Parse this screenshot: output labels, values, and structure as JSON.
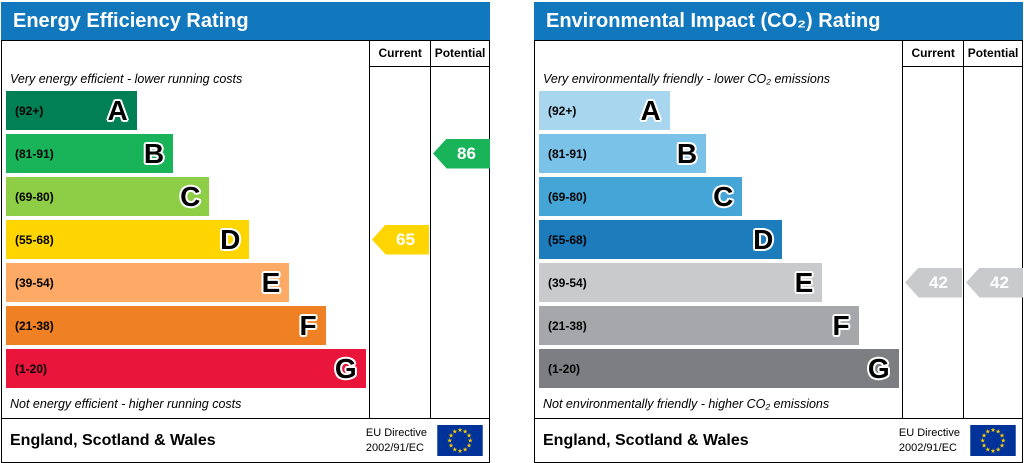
{
  "chart_data": [
    {
      "type": "bar",
      "title": "Energy Efficiency Rating",
      "bands": [
        {
          "grade": "A",
          "range": "92+"
        },
        {
          "grade": "B",
          "range": "81-91"
        },
        {
          "grade": "C",
          "range": "69-80"
        },
        {
          "grade": "D",
          "range": "55-68"
        },
        {
          "grade": "E",
          "range": "39-54"
        },
        {
          "grade": "F",
          "range": "21-38"
        },
        {
          "grade": "G",
          "range": "1-20"
        }
      ],
      "current": 65,
      "current_band": "D",
      "potential": 86,
      "potential_band": "B",
      "top_annotation": "Very energy efficient - lower running costs",
      "bottom_annotation": "Not energy efficient - higher running costs",
      "region": "England, Scotland & Wales",
      "directive": "EU Directive 2002/91/EC"
    },
    {
      "type": "bar",
      "title": "Environmental Impact (CO₂) Rating",
      "bands": [
        {
          "grade": "A",
          "range": "92+"
        },
        {
          "grade": "B",
          "range": "81-91"
        },
        {
          "grade": "C",
          "range": "69-80"
        },
        {
          "grade": "D",
          "range": "55-68"
        },
        {
          "grade": "E",
          "range": "39-54"
        },
        {
          "grade": "F",
          "range": "21-38"
        },
        {
          "grade": "G",
          "range": "1-20"
        }
      ],
      "current": 42,
      "current_band": "E",
      "potential": 42,
      "potential_band": "E",
      "top_annotation": "Very environmentally friendly - lower CO₂ emissions",
      "bottom_annotation": "Not environmentally friendly - higher CO₂ emissions",
      "region": "England, Scotland & Wales",
      "directive": "EU Directive 2002/91/EC"
    }
  ],
  "panels": [
    {
      "title": "Energy Efficiency Rating",
      "columns": {
        "current": "Current",
        "potential": "Potential"
      },
      "top_note": "Very energy efficient - lower running costs",
      "bottom_note": "Not energy efficient - higher running costs",
      "bands": [
        {
          "range": "(92+)",
          "letter": "A",
          "color": "#008054",
          "width_pct": 36
        },
        {
          "range": "(81-91)",
          "letter": "B",
          "color": "#19b459",
          "width_pct": 46
        },
        {
          "range": "(69-80)",
          "letter": "C",
          "color": "#8dce46",
          "width_pct": 56
        },
        {
          "range": "(55-68)",
          "letter": "D",
          "color": "#ffd500",
          "width_pct": 67
        },
        {
          "range": "(39-54)",
          "letter": "E",
          "color": "#fcaa65",
          "width_pct": 78
        },
        {
          "range": "(21-38)",
          "letter": "F",
          "color": "#ef8023",
          "width_pct": 88
        },
        {
          "range": "(1-20)",
          "letter": "G",
          "color": "#e9153b",
          "width_pct": 99
        }
      ],
      "current": {
        "value": "65",
        "color": "#ffd500",
        "band_index": 3
      },
      "potential": {
        "value": "86",
        "color": "#19b459",
        "band_index": 1
      },
      "footer": {
        "region": "England, Scotland & Wales",
        "directive_line1": "EU Directive",
        "directive_line2": "2002/91/EC"
      },
      "accent_color": "#1278bd"
    },
    {
      "title": "Environmental Impact (CO₂) Rating",
      "columns": {
        "current": "Current",
        "potential": "Potential"
      },
      "top_note": "Very environmentally friendly - lower CO₂ emissions",
      "bottom_note": "Not environmentally friendly - higher CO₂ emissions",
      "bands": [
        {
          "range": "(92+)",
          "letter": "A",
          "color": "#a8d6ef",
          "width_pct": 36
        },
        {
          "range": "(81-91)",
          "letter": "B",
          "color": "#7bc2e8",
          "width_pct": 46
        },
        {
          "range": "(69-80)",
          "letter": "C",
          "color": "#45a5d6",
          "width_pct": 56
        },
        {
          "range": "(55-68)",
          "letter": "D",
          "color": "#1c7cbc",
          "width_pct": 67
        },
        {
          "range": "(39-54)",
          "letter": "E",
          "color": "#c9cacb",
          "width_pct": 78
        },
        {
          "range": "(21-38)",
          "letter": "F",
          "color": "#a5a7aa",
          "width_pct": 88
        },
        {
          "range": "(1-20)",
          "letter": "G",
          "color": "#7c7e81",
          "width_pct": 99
        }
      ],
      "current": {
        "value": "42",
        "color": "#c9cacb",
        "band_index": 4
      },
      "potential": {
        "value": "42",
        "color": "#c9cacb",
        "band_index": 4
      },
      "footer": {
        "region": "England, Scotland & Wales",
        "directive_line1": "EU Directive",
        "directive_line2": "2002/91/EC"
      },
      "accent_color": "#1278bd"
    }
  ]
}
